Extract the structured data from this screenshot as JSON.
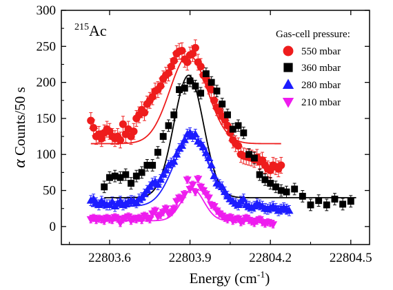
{
  "chart_data": {
    "type": "scatter",
    "title": "",
    "isotope": {
      "mass_number": "215",
      "element": "Ac"
    },
    "xlabel": {
      "text": "Energy (cm",
      "sup": "-1",
      "close": ")"
    },
    "ylabel": {
      "symbol": "α",
      "text": " Counts/50 s"
    },
    "xlim": [
      22803.42,
      22804.57
    ],
    "ylim": [
      -25,
      300
    ],
    "xticks": [
      22803.6,
      22803.9,
      22804.2,
      22804.5
    ],
    "xtick_labels": [
      "22803.6",
      "22803.9",
      "22804.2",
      "22804.5"
    ],
    "yticks": [
      0,
      50,
      100,
      150,
      200,
      250,
      300
    ],
    "ytick_labels": [
      "0",
      "50",
      "100",
      "150",
      "200",
      "250",
      "300"
    ],
    "grid": false,
    "legend": {
      "title": "Gas-cell pressure:",
      "position": "top-right"
    },
    "series": [
      {
        "name": "550 mbar",
        "color": "#ee1c1c",
        "marker": "circle",
        "err": 11,
        "fit": {
          "base": 115,
          "amp": 123,
          "center": 22803.895,
          "sigma": 0.07,
          "range": [
            22803.53,
            22804.24
          ]
        },
        "x": [
          22803.53,
          22803.54,
          22803.55,
          22803.56,
          22803.57,
          22803.58,
          22803.59,
          22803.6,
          22803.61,
          22803.62,
          22803.63,
          22803.64,
          22803.65,
          22803.66,
          22803.67,
          22803.68,
          22803.69,
          22803.7,
          22803.71,
          22803.72,
          22803.73,
          22803.74,
          22803.75,
          22803.76,
          22803.77,
          22803.78,
          22803.79,
          22803.8,
          22803.81,
          22803.82,
          22803.83,
          22803.84,
          22803.85,
          22803.86,
          22803.87,
          22803.88,
          22803.89,
          22803.9,
          22803.91,
          22803.92,
          22803.93,
          22803.94,
          22803.95,
          22803.96,
          22803.97,
          22803.98,
          22803.99,
          22804.0,
          22804.01,
          22804.02,
          22804.03,
          22804.04,
          22804.05,
          22804.06,
          22804.07,
          22804.08,
          22804.09,
          22804.1,
          22804.11,
          22804.12,
          22804.13,
          22804.14,
          22804.15,
          22804.16,
          22804.17,
          22804.18,
          22804.19,
          22804.2,
          22804.21,
          22804.22,
          22804.23,
          22804.24
        ],
        "y": [
          147,
          137,
          125,
          128,
          122,
          130,
          135,
          132,
          125,
          122,
          125,
          120,
          142,
          128,
          135,
          125,
          132,
          150,
          155,
          162,
          158,
          170,
          175,
          180,
          188,
          190,
          195,
          205,
          210,
          213,
          222,
          230,
          240,
          243,
          244,
          232,
          228,
          238,
          240,
          248,
          228,
          222,
          210,
          205,
          195,
          190,
          175,
          165,
          160,
          153,
          148,
          140,
          130,
          120,
          115,
          112,
          100,
          98,
          97,
          96,
          95,
          93,
          96,
          90,
          92,
          85,
          80,
          78,
          85,
          83,
          80,
          85
        ]
      },
      {
        "name": "360 mbar",
        "color": "#000000",
        "marker": "square",
        "err": 8,
        "fit": {
          "base": 40,
          "amp": 170,
          "center": 22803.895,
          "sigma": 0.055,
          "range": [
            22803.58,
            22804.52
          ]
        },
        "x": [
          22803.58,
          22803.6,
          22803.62,
          22803.64,
          22803.66,
          22803.68,
          22803.7,
          22803.72,
          22803.74,
          22803.76,
          22803.78,
          22803.8,
          22803.82,
          22803.84,
          22803.86,
          22803.88,
          22803.9,
          22803.92,
          22803.94,
          22803.96,
          22803.98,
          22804.0,
          22804.02,
          22804.04,
          22804.06,
          22804.08,
          22804.1,
          22804.12,
          22804.14,
          22804.16,
          22804.18,
          22804.2,
          22804.22,
          22804.24,
          22804.26,
          22804.29,
          22804.32,
          22804.35,
          22804.38,
          22804.41,
          22804.44,
          22804.47,
          22804.5
        ],
        "y": [
          55,
          68,
          70,
          68,
          72,
          60,
          70,
          75,
          85,
          85,
          103,
          125,
          140,
          155,
          190,
          192,
          202,
          195,
          185,
          212,
          200,
          188,
          170,
          155,
          135,
          140,
          130,
          100,
          95,
          72,
          65,
          60,
          55,
          50,
          48,
          52,
          42,
          30,
          36,
          30,
          38,
          31,
          35
        ]
      },
      {
        "name": "280 mbar",
        "color": "#1c1cff",
        "marker": "triangle-up",
        "err": 7,
        "fit": {
          "base": 28,
          "amp": 96,
          "center": 22803.905,
          "sigma": 0.065,
          "range": [
            22803.53,
            22804.27
          ]
        },
        "x": [
          22803.53,
          22803.54,
          22803.55,
          22803.56,
          22803.57,
          22803.58,
          22803.59,
          22803.6,
          22803.61,
          22803.62,
          22803.63,
          22803.64,
          22803.65,
          22803.66,
          22803.67,
          22803.68,
          22803.69,
          22803.7,
          22803.71,
          22803.72,
          22803.73,
          22803.74,
          22803.75,
          22803.76,
          22803.77,
          22803.78,
          22803.79,
          22803.8,
          22803.81,
          22803.82,
          22803.83,
          22803.84,
          22803.85,
          22803.86,
          22803.87,
          22803.88,
          22803.89,
          22803.9,
          22803.91,
          22803.92,
          22803.93,
          22803.94,
          22803.95,
          22803.96,
          22803.97,
          22803.98,
          22803.99,
          22804.0,
          22804.01,
          22804.02,
          22804.03,
          22804.04,
          22804.05,
          22804.06,
          22804.07,
          22804.08,
          22804.09,
          22804.1,
          22804.11,
          22804.12,
          22804.13,
          22804.14,
          22804.15,
          22804.16,
          22804.17,
          22804.18,
          22804.19,
          22804.2,
          22804.21,
          22804.22,
          22804.23,
          22804.24,
          22804.25,
          22804.26,
          22804.27
        ],
        "y": [
          36,
          38,
          33,
          30,
          35,
          32,
          30,
          30,
          34,
          28,
          32,
          35,
          30,
          32,
          34,
          36,
          35,
          33,
          38,
          40,
          45,
          50,
          55,
          60,
          62,
          58,
          65,
          72,
          78,
          85,
          88,
          90,
          100,
          108,
          112,
          120,
          128,
          130,
          125,
          128,
          118,
          115,
          110,
          102,
          95,
          85,
          70,
          60,
          58,
          55,
          48,
          42,
          38,
          35,
          32,
          30,
          35,
          38,
          30,
          28,
          26,
          28,
          32,
          30,
          28,
          25,
          24,
          26,
          28,
          25,
          22,
          24,
          26,
          24,
          22
        ]
      },
      {
        "name": "210 mbar",
        "color": "#ee1cee",
        "marker": "triangle-down",
        "err": 5,
        "fit": {
          "base": 8,
          "amp": 44,
          "center": 22803.91,
          "sigma": 0.042,
          "range": [
            22803.53,
            22804.21
          ]
        },
        "x": [
          22803.53,
          22803.54,
          22803.55,
          22803.56,
          22803.57,
          22803.58,
          22803.59,
          22803.6,
          22803.61,
          22803.62,
          22803.63,
          22803.64,
          22803.65,
          22803.66,
          22803.67,
          22803.68,
          22803.69,
          22803.7,
          22803.71,
          22803.72,
          22803.73,
          22803.74,
          22803.75,
          22803.76,
          22803.77,
          22803.78,
          22803.79,
          22803.8,
          22803.81,
          22803.82,
          22803.83,
          22803.84,
          22803.85,
          22803.86,
          22803.87,
          22803.88,
          22803.89,
          22803.9,
          22803.91,
          22803.92,
          22803.93,
          22803.94,
          22803.95,
          22803.96,
          22803.97,
          22803.98,
          22803.99,
          22804.0,
          22804.01,
          22804.02,
          22804.03,
          22804.04,
          22804.05,
          22804.06,
          22804.07,
          22804.08,
          22804.09,
          22804.1,
          22804.11,
          22804.12,
          22804.13,
          22804.14,
          22804.15,
          22804.16,
          22804.17,
          22804.18,
          22804.19,
          22804.2,
          22804.21
        ],
        "y": [
          10,
          12,
          9,
          11,
          10,
          8,
          12,
          10,
          9,
          13,
          11,
          5,
          10,
          12,
          14,
          8,
          11,
          10,
          12,
          9,
          15,
          12,
          10,
          18,
          22,
          14,
          16,
          20,
          25,
          18,
          20,
          25,
          35,
          40,
          38,
          45,
          65,
          52,
          58,
          48,
          66,
          55,
          50,
          45,
          40,
          30,
          28,
          22,
          18,
          15,
          12,
          10,
          13,
          8,
          10,
          11,
          6,
          8,
          12,
          9,
          7,
          5,
          8,
          10,
          6,
          4,
          6,
          5,
          3
        ]
      }
    ]
  }
}
